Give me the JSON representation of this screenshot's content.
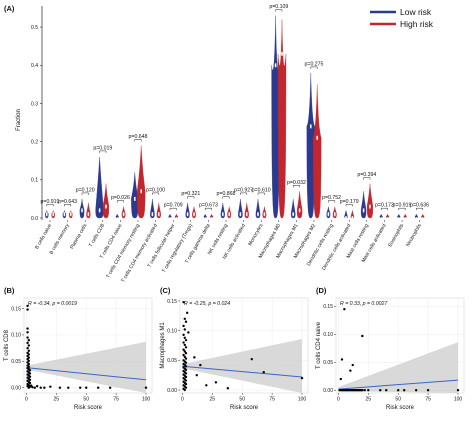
{
  "panels": {
    "A": "(A)",
    "B": "(B)",
    "C": "(C)",
    "D": "(D)"
  },
  "chart_data": [
    {
      "type": "violin",
      "panel": "(A)",
      "ylabel": "Fraction",
      "ylim": [
        0,
        0.55
      ],
      "yticks": [
        "0.0",
        "0.1",
        "0.2",
        "0.3",
        "0.4",
        "0.5"
      ],
      "legend": {
        "placement": "top-right",
        "entries": [
          "Low risk",
          "High risk"
        ]
      },
      "colors": {
        "low": "#2b3990",
        "high": "#c1272d",
        "box": "#ffffff"
      },
      "categories": [
        "B cells naive",
        "B cells memory",
        "Plasma cells",
        "T cells CD8",
        "T cells CD4 naive",
        "T cells CD4 memory resting",
        "T cells CD4 memory activated",
        "T cells follicular helper",
        "T cells regulatory (Tregs)",
        "T cells gamma delta",
        "NK cells resting",
        "NK cells activated",
        "Monocytes",
        "Macrophages M0",
        "Macrophages M1",
        "Macrophages M2",
        "Dendritic cells resting",
        "Dendritic cells activated",
        "Mast cells resting",
        "Mast cells activated",
        "Eosinophils",
        "Neutrophils"
      ],
      "pvalues": [
        "p=0.919",
        "p=0.643",
        "p=0.120",
        "p=0.019",
        "p=0.026",
        "p=0.648",
        "p=0.100",
        "p=0.709",
        "p=0.321",
        "p=0.673",
        "p=0.868",
        "p=0.927",
        "p=0.610",
        "p=0.109",
        "p=0.032",
        "p=0.275",
        "p=0.752",
        "p=0.179",
        "p=0.394",
        "p=0.173",
        "p=0.919",
        "p=0.636"
      ],
      "series": [
        {
          "name": "Low risk",
          "max": [
            0.02,
            0.02,
            0.05,
            0.16,
            0.01,
            0.12,
            0.05,
            0.01,
            0.04,
            0.01,
            0.04,
            0.05,
            0.05,
            0.53,
            0.05,
            0.38,
            0.03,
            0.02,
            0.07,
            0.01,
            0.01,
            0.01
          ],
          "median": [
            0.01,
            0.01,
            0.02,
            0.02,
            0.0,
            0.05,
            0.01,
            0.0,
            0.01,
            0.0,
            0.01,
            0.01,
            0.01,
            0.4,
            0.01,
            0.24,
            0.01,
            0.0,
            0.02,
            0.0,
            0.0,
            0.0
          ]
        },
        {
          "name": "High risk",
          "max": [
            0.02,
            0.02,
            0.04,
            0.09,
            0.03,
            0.19,
            0.04,
            0.01,
            0.03,
            0.01,
            0.03,
            0.04,
            0.03,
            0.52,
            0.07,
            0.35,
            0.03,
            0.02,
            0.09,
            0.01,
            0.01,
            0.01
          ],
          "median": [
            0.01,
            0.01,
            0.01,
            0.03,
            0.01,
            0.07,
            0.01,
            0.0,
            0.01,
            0.0,
            0.01,
            0.01,
            0.01,
            0.43,
            0.02,
            0.21,
            0.01,
            0.0,
            0.03,
            0.0,
            0.0,
            0.0
          ]
        }
      ]
    },
    {
      "type": "scatter",
      "panel": "(B)",
      "xlabel": "Risk score",
      "ylabel": "T cells CD8",
      "stat": "R = -0.34, p = 0.0019",
      "xlim": [
        -2,
        105
      ],
      "ylim": [
        -0.01,
        0.17
      ],
      "xticks": [
        "0",
        "25",
        "50",
        "75",
        "100"
      ],
      "yticks": [
        "0.00",
        "0.05",
        "0.10",
        "0.15"
      ],
      "line": {
        "x": [
          0,
          100
        ],
        "y": [
          0.038,
          0.015
        ]
      },
      "points": [
        [
          1,
          0.155
        ],
        [
          1,
          0.148
        ],
        [
          1,
          0.112
        ],
        [
          1,
          0.105
        ],
        [
          1,
          0.095
        ],
        [
          2,
          0.09
        ],
        [
          1,
          0.085
        ],
        [
          2,
          0.08
        ],
        [
          1,
          0.075
        ],
        [
          2,
          0.07
        ],
        [
          1,
          0.066
        ],
        [
          2,
          0.063
        ],
        [
          1,
          0.06
        ],
        [
          2,
          0.057
        ],
        [
          1,
          0.054
        ],
        [
          2,
          0.051
        ],
        [
          1,
          0.048
        ],
        [
          2,
          0.045
        ],
        [
          1,
          0.042
        ],
        [
          2,
          0.04
        ],
        [
          1,
          0.037
        ],
        [
          2,
          0.035
        ],
        [
          3,
          0.033
        ],
        [
          1,
          0.031
        ],
        [
          2,
          0.029
        ],
        [
          3,
          0.027
        ],
        [
          1,
          0.025
        ],
        [
          2,
          0.023
        ],
        [
          3,
          0.021
        ],
        [
          1,
          0.019
        ],
        [
          2,
          0.017
        ],
        [
          3,
          0.015
        ],
        [
          1,
          0.013
        ],
        [
          2,
          0.011
        ],
        [
          3,
          0.009
        ],
        [
          1,
          0.007
        ],
        [
          2,
          0.005
        ],
        [
          4,
          0.004
        ],
        [
          1,
          0.003
        ],
        [
          3,
          0.002
        ],
        [
          5,
          0.001
        ],
        [
          2,
          0.0
        ],
        [
          7,
          0.0
        ],
        [
          9,
          0.003
        ],
        [
          12,
          0.0
        ],
        [
          15,
          0.0
        ],
        [
          20,
          0.002
        ],
        [
          28,
          0.0
        ],
        [
          35,
          0.0
        ],
        [
          45,
          0.0
        ],
        [
          50,
          0.0
        ],
        [
          60,
          0.0
        ],
        [
          70,
          0.0
        ],
        [
          100,
          0.0
        ]
      ]
    },
    {
      "type": "scatter",
      "panel": "(C)",
      "xlabel": "Risk score",
      "ylabel": "Macrophages M1",
      "stat": "R = -0.25, p = 0.024",
      "xlim": [
        -2,
        105
      ],
      "ylim": [
        -0.005,
        0.155
      ],
      "xticks": [
        "0",
        "25",
        "50",
        "75",
        "100"
      ],
      "yticks": [
        "0.00",
        "0.05",
        "0.10",
        "0.15"
      ],
      "line": {
        "x": [
          0,
          100
        ],
        "y": [
          0.04,
          0.022
        ]
      },
      "points": [
        [
          1,
          0.148
        ],
        [
          4,
          0.13
        ],
        [
          2,
          0.12
        ],
        [
          3,
          0.115
        ],
        [
          1,
          0.108
        ],
        [
          2,
          0.102
        ],
        [
          5,
          0.097
        ],
        [
          1,
          0.093
        ],
        [
          2,
          0.088
        ],
        [
          3,
          0.084
        ],
        [
          1,
          0.08
        ],
        [
          2,
          0.076
        ],
        [
          3,
          0.072
        ],
        [
          1,
          0.068
        ],
        [
          2,
          0.065
        ],
        [
          3,
          0.062
        ],
        [
          1,
          0.059
        ],
        [
          2,
          0.056
        ],
        [
          3,
          0.053
        ],
        [
          1,
          0.05
        ],
        [
          2,
          0.048
        ],
        [
          3,
          0.046
        ],
        [
          1,
          0.044
        ],
        [
          2,
          0.042
        ],
        [
          3,
          0.04
        ],
        [
          1,
          0.038
        ],
        [
          2,
          0.036
        ],
        [
          3,
          0.034
        ],
        [
          1,
          0.032
        ],
        [
          2,
          0.03
        ],
        [
          3,
          0.028
        ],
        [
          1,
          0.026
        ],
        [
          2,
          0.024
        ],
        [
          3,
          0.022
        ],
        [
          1,
          0.02
        ],
        [
          2,
          0.018
        ],
        [
          3,
          0.016
        ],
        [
          1,
          0.014
        ],
        [
          2,
          0.012
        ],
        [
          3,
          0.01
        ],
        [
          1,
          0.008
        ],
        [
          2,
          0.006
        ],
        [
          3,
          0.004
        ],
        [
          1,
          0.002
        ],
        [
          2,
          0.0
        ],
        [
          10,
          0.055
        ],
        [
          12,
          0.025
        ],
        [
          15,
          0.042
        ],
        [
          20,
          0.008
        ],
        [
          28,
          0.013
        ],
        [
          38,
          0.003
        ],
        [
          58,
          0.052
        ],
        [
          68,
          0.03
        ],
        [
          100,
          0.02
        ]
      ]
    },
    {
      "type": "scatter",
      "panel": "(D)",
      "xlabel": "Risk score",
      "ylabel": "T cells CD4 naive",
      "stat": "R = 0.33, p = 0.0027",
      "xlim": [
        -2,
        105
      ],
      "ylim": [
        -0.005,
        0.165
      ],
      "xticks": [
        "0",
        "25",
        "50",
        "75",
        "100"
      ],
      "yticks": [
        "0.00",
        "0.05",
        "0.10",
        "0.15"
      ],
      "line": {
        "x": [
          0,
          100
        ],
        "y": [
          0.002,
          0.018
        ]
      },
      "points": [
        [
          5,
          0.145
        ],
        [
          20,
          0.097
        ],
        [
          3,
          0.055
        ],
        [
          12,
          0.045
        ],
        [
          10,
          0.035
        ],
        [
          2,
          0.02
        ],
        [
          1,
          0.0
        ],
        [
          2,
          0.0
        ],
        [
          3,
          0.0
        ],
        [
          4,
          0.0
        ],
        [
          5,
          0.0
        ],
        [
          6,
          0.0
        ],
        [
          7,
          0.0
        ],
        [
          8,
          0.0
        ],
        [
          9,
          0.0
        ],
        [
          10,
          0.0
        ],
        [
          11,
          0.0
        ],
        [
          12,
          0.0
        ],
        [
          13,
          0.0
        ],
        [
          14,
          0.0
        ],
        [
          15,
          0.0
        ],
        [
          16,
          0.0
        ],
        [
          17,
          0.0
        ],
        [
          18,
          0.0
        ],
        [
          19,
          0.0
        ],
        [
          20,
          0.0
        ],
        [
          22,
          0.0
        ],
        [
          25,
          0.0
        ],
        [
          35,
          0.0
        ],
        [
          40,
          0.0
        ],
        [
          50,
          0.0
        ],
        [
          55,
          0.0
        ],
        [
          65,
          0.0
        ],
        [
          75,
          0.0
        ],
        [
          100,
          0.0
        ]
      ]
    }
  ]
}
